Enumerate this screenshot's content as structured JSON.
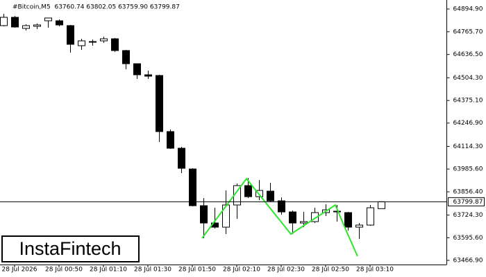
{
  "chart_data": {
    "type": "candlestick",
    "title": "#Bitcoin,M5  63760.74 63802.05 63759.90 63799.87",
    "watermark": "InstaFintech",
    "categories": [
      null,
      "28 Jul 2026",
      null,
      null,
      null,
      "28 Jul 00:50",
      null,
      null,
      null,
      "28 Jul 01:10",
      null,
      null,
      null,
      "28 Jul 01:30",
      null,
      null,
      null,
      "28 Jul 01:50",
      null,
      null,
      null,
      "28 Jul 02:10",
      null,
      null,
      null,
      "28 Jul 02:30",
      null,
      null,
      null,
      "28 Jul 02:50",
      null,
      null,
      null,
      "28 Jul 03:10",
      null
    ],
    "open": [
      64800.5,
      64847.7,
      64784.7,
      64796.5,
      64828.0,
      64828.0,
      64800.5,
      64686.4,
      64706.1,
      64713.9,
      64725.7,
      64658.9,
      64584.1,
      64521.2,
      64517.2,
      64198.6,
      64104.1,
      63986.1,
      63777.6,
      63679.2,
      63655.6,
      63781.6,
      63891.7,
      63828.8,
      63860.2,
      63805.2,
      63742.2,
      63679.2,
      63687.2,
      63738.3,
      63746.2,
      63738.3,
      63655.6,
      63667.4,
      63760.74
    ],
    "high": [
      64867.4,
      64855.5,
      64808.3,
      64812.3,
      64843.8,
      64835.9,
      64804.4,
      64725.7,
      64721.8,
      64737.5,
      64729.7,
      64662.8,
      64584.1,
      64544.8,
      64521.2,
      64210.4,
      64112.0,
      63990.1,
      63820.9,
      63765.8,
      63864.2,
      63903.5,
      63935.0,
      63923.2,
      63907.4,
      63824.8,
      63750.1,
      63742.2,
      63765.8,
      63785.5,
      63781.6,
      63742.2,
      63679.2,
      63781.6,
      63802.05
    ],
    "low": [
      64796.5,
      64788.7,
      64772.9,
      64780.8,
      64788.7,
      64796.5,
      64647.1,
      64662.8,
      64686.4,
      64702.1,
      64651.0,
      64552.6,
      64497.6,
      64497.6,
      64139.6,
      64100.2,
      63962.5,
      63773.7,
      63592.7,
      63647.8,
      63616.3,
      63702.9,
      63820.9,
      63809.1,
      63797.3,
      63726.5,
      63616.3,
      63655.6,
      63679.2,
      63718.6,
      63687.2,
      63636.0,
      63588.8,
      63663.5,
      63759.9
    ],
    "close": [
      64847.7,
      64792.6,
      64800.5,
      64804.4,
      64843.8,
      64804.4,
      64694.3,
      64713.9,
      64710.0,
      64725.7,
      64658.9,
      64584.1,
      64521.2,
      64513.3,
      64198.6,
      64104.1,
      63990.1,
      63777.6,
      63679.2,
      63655.6,
      63781.6,
      63891.7,
      63828.8,
      63864.2,
      63805.2,
      63742.2,
      63679.2,
      63687.2,
      63738.3,
      63754.0,
      63746.2,
      63655.6,
      63667.4,
      63765.8,
      63799.87
    ],
    "up_color": "#ffffff",
    "down_color": "#000000",
    "ylim": [
      63443.3,
      64946.0
    ],
    "yticks": [
      {
        "value": 64894.9,
        "label": "64894.90"
      },
      {
        "value": 64765.7,
        "label": "64765.70"
      },
      {
        "value": 64636.5,
        "label": "64636.50"
      },
      {
        "value": 64504.3,
        "label": "64504.30"
      },
      {
        "value": 64375.1,
        "label": "64375.10"
      },
      {
        "value": 64246.9,
        "label": "64246.90"
      },
      {
        "value": 64114.3,
        "label": "64114.30"
      },
      {
        "value": 63985.6,
        "label": "63985.60"
      },
      {
        "value": 63856.4,
        "label": "63856.40"
      },
      {
        "value": 63724.3,
        "label": "63724.30"
      },
      {
        "value": 63595.6,
        "label": "63595.60"
      },
      {
        "value": 63466.9,
        "label": "63466.90"
      }
    ]
  }
}
